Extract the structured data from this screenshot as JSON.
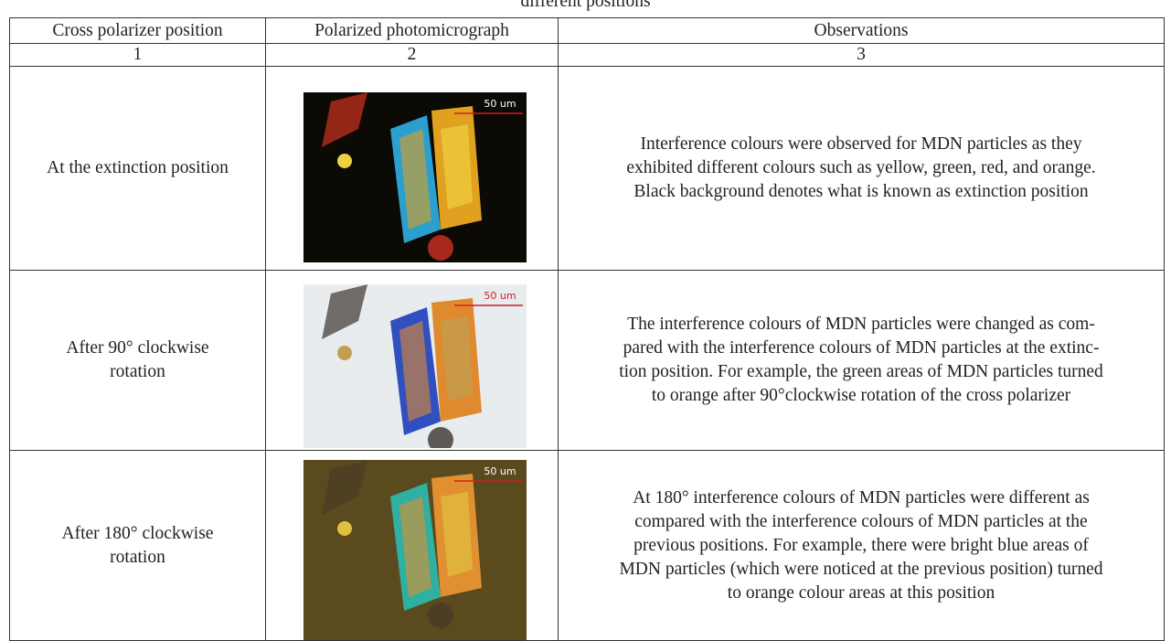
{
  "caption": "different positions",
  "table": {
    "header": [
      "Cross polarizer position",
      "Polarized photomicrograph",
      "Observations"
    ],
    "numbers": [
      "1",
      "2",
      "3"
    ],
    "rows": [
      {
        "position": [
          "At the extinction position"
        ],
        "scale_label": "50 um",
        "observation": [
          "Interference colours were observed for MDN particles as they",
          "exhibited different colours such as yellow, green, red, and orange.",
          "Black background denotes what is known as extinction position"
        ]
      },
      {
        "position": [
          "After 90° clockwise",
          "rotation"
        ],
        "scale_label": "50 um",
        "observation": [
          "The interference colours of MDN particles were changed as com-",
          "pared with the interference colours of MDN particles at the extinc-",
          "tion position. For example, the green areas of MDN particles turned",
          "to orange after 90°clockwise rotation of the cross polarizer"
        ]
      },
      {
        "position": [
          "After 180° clockwise",
          "rotation"
        ],
        "scale_label": "50 um",
        "observation": [
          "At 180° interference colours of MDN particles were different as",
          "compared with the interference colours of MDN particles at the",
          "previous positions. For example, there were bright blue areas of",
          "MDN particles (which were noticed at the previous position) turned",
          "to orange colour areas at this position"
        ]
      }
    ]
  }
}
